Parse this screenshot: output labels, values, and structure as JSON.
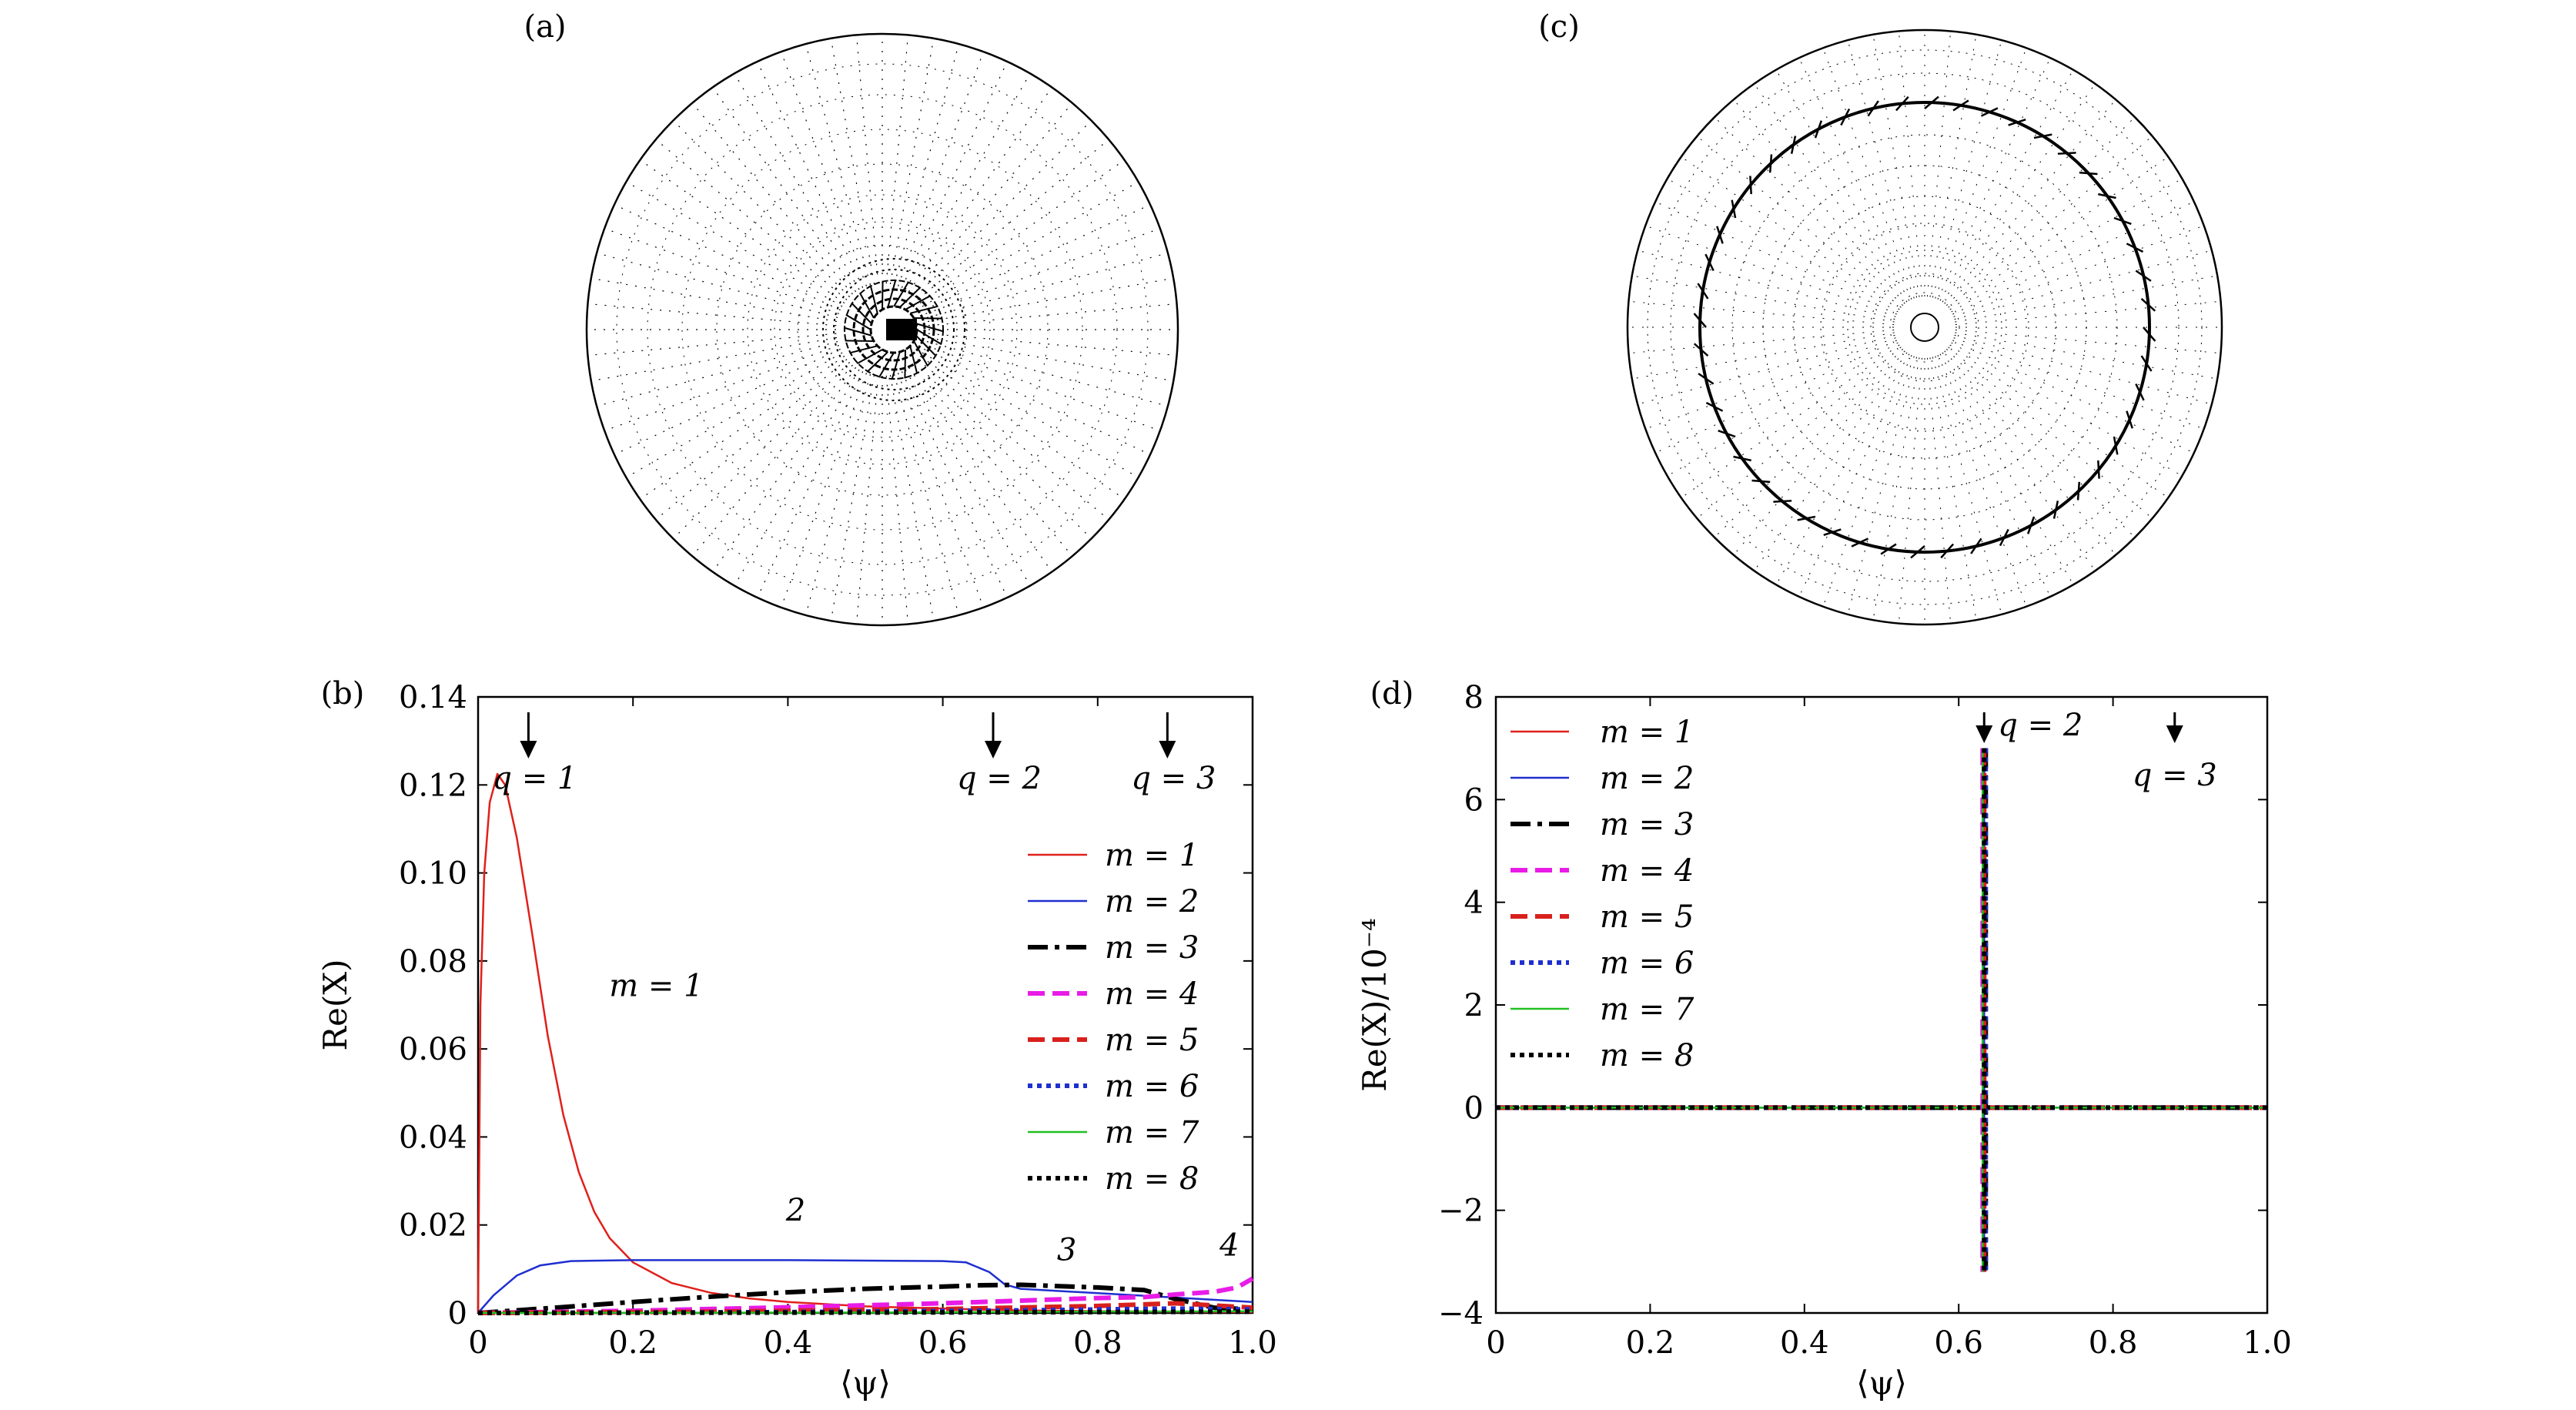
{
  "figure": {
    "panel_labels": {
      "a": "(a)",
      "b": "(b)",
      "c": "(c)",
      "d": "(d)"
    }
  },
  "chart_data": [
    {
      "panel": "b",
      "type": "line",
      "xlabel": "⟨ψ⟩",
      "ylabel": "Re(X)",
      "xlim": [
        0,
        1.0
      ],
      "ylim": [
        0,
        0.14
      ],
      "xticks": [
        "0",
        "0.2",
        "0.4",
        "0.6",
        "0.8",
        "1.0"
      ],
      "yticks": [
        "0",
        "0.02",
        "0.04",
        "0.06",
        "0.08",
        "0.10",
        "0.12",
        "0.14"
      ],
      "rational_surfaces": [
        {
          "label": "q = 1",
          "x": 0.065
        },
        {
          "label": "q = 2",
          "x": 0.665
        },
        {
          "label": "q = 3",
          "x": 0.89
        }
      ],
      "curve_annotations": [
        {
          "text": "m = 1",
          "x": 0.23,
          "y": 0.072
        },
        {
          "text": "2",
          "x": 0.41,
          "y": 0.021
        },
        {
          "text": "3",
          "x": 0.76,
          "y": 0.012
        },
        {
          "text": "4",
          "x": 0.97,
          "y": 0.013
        }
      ],
      "legend_position": "right",
      "series": [
        {
          "name": "m = 1",
          "color": "#e0201b",
          "style": "solid",
          "width": "thin",
          "points": [
            [
              0,
              0
            ],
            [
              0.003,
              0.07
            ],
            [
              0.008,
              0.1
            ],
            [
              0.015,
              0.116
            ],
            [
              0.025,
              0.1225
            ],
            [
              0.035,
              0.12
            ],
            [
              0.05,
              0.108
            ],
            [
              0.07,
              0.086
            ],
            [
              0.09,
              0.063
            ],
            [
              0.11,
              0.045
            ],
            [
              0.13,
              0.032
            ],
            [
              0.15,
              0.023
            ],
            [
              0.17,
              0.017
            ],
            [
              0.2,
              0.0115
            ],
            [
              0.25,
              0.0068
            ],
            [
              0.3,
              0.0046
            ],
            [
              0.35,
              0.0033
            ],
            [
              0.4,
              0.0025
            ],
            [
              0.5,
              0.0015
            ],
            [
              0.6,
              0.001
            ],
            [
              0.7,
              0.0006
            ],
            [
              0.8,
              0.0004
            ],
            [
              1.0,
              0.0002
            ]
          ]
        },
        {
          "name": "m = 2",
          "color": "#1f2fd0",
          "style": "solid",
          "width": "thin",
          "points": [
            [
              0,
              0
            ],
            [
              0.02,
              0.004
            ],
            [
              0.05,
              0.0085
            ],
            [
              0.08,
              0.0108
            ],
            [
              0.12,
              0.0118
            ],
            [
              0.2,
              0.012
            ],
            [
              0.4,
              0.012
            ],
            [
              0.6,
              0.0118
            ],
            [
              0.63,
              0.0115
            ],
            [
              0.66,
              0.0093
            ],
            [
              0.68,
              0.0065
            ],
            [
              0.7,
              0.0055
            ],
            [
              0.8,
              0.0045
            ],
            [
              0.9,
              0.0035
            ],
            [
              1.0,
              0.0025
            ]
          ]
        },
        {
          "name": "m = 3",
          "color": "#000000",
          "style": "dashdot",
          "width": "thick",
          "points": [
            [
              0,
              0
            ],
            [
              0.1,
              0.0012
            ],
            [
              0.2,
              0.0025
            ],
            [
              0.3,
              0.0037
            ],
            [
              0.4,
              0.0047
            ],
            [
              0.5,
              0.0055
            ],
            [
              0.6,
              0.006
            ],
            [
              0.65,
              0.0063
            ],
            [
              0.7,
              0.0064
            ],
            [
              0.8,
              0.0058
            ],
            [
              0.86,
              0.0052
            ],
            [
              0.9,
              0.0032
            ],
            [
              0.95,
              0.0012
            ],
            [
              1.0,
              0.0008
            ]
          ]
        },
        {
          "name": "m = 4",
          "color": "#e81ce6",
          "style": "dashed",
          "width": "thick",
          "points": [
            [
              0,
              0
            ],
            [
              0.2,
              0.0005
            ],
            [
              0.4,
              0.0013
            ],
            [
              0.6,
              0.0022
            ],
            [
              0.7,
              0.0028
            ],
            [
              0.8,
              0.0034
            ],
            [
              0.86,
              0.0036
            ],
            [
              0.9,
              0.0042
            ],
            [
              0.95,
              0.0048
            ],
            [
              0.98,
              0.0058
            ],
            [
              1.0,
              0.0078
            ]
          ]
        },
        {
          "name": "m = 5",
          "color": "#d8201c",
          "style": "dashed",
          "width": "thick",
          "points": [
            [
              0,
              0
            ],
            [
              0.3,
              0.0003
            ],
            [
              0.6,
              0.0009
            ],
            [
              0.8,
              0.0016
            ],
            [
              0.9,
              0.0022
            ],
            [
              1.0,
              0.0012
            ]
          ]
        },
        {
          "name": "m = 6",
          "color": "#1f2fd0",
          "style": "dotted",
          "width": "thick",
          "points": [
            [
              0,
              0
            ],
            [
              0.4,
              0.0002
            ],
            [
              0.7,
              0.0006
            ],
            [
              0.9,
              0.001
            ],
            [
              1.0,
              0.0008
            ]
          ]
        },
        {
          "name": "m = 7",
          "color": "#22c022",
          "style": "solid",
          "width": "thin",
          "points": [
            [
              0,
              0
            ],
            [
              0.5,
              0.0001
            ],
            [
              0.8,
              0.0003
            ],
            [
              1.0,
              0.0004
            ]
          ]
        },
        {
          "name": "m = 8",
          "color": "#000000",
          "style": "dotted",
          "width": "thick",
          "points": [
            [
              0,
              0
            ],
            [
              0.5,
              0.0001
            ],
            [
              0.8,
              0.0002
            ],
            [
              1.0,
              0.0003
            ]
          ]
        }
      ]
    },
    {
      "panel": "d",
      "type": "line",
      "xlabel": "⟨ψ⟩",
      "ylabel": "Re(X)/10⁻⁴",
      "xlim": [
        0,
        1.0
      ],
      "ylim": [
        -4,
        8
      ],
      "xticks": [
        "0",
        "0.2",
        "0.4",
        "0.6",
        "0.8",
        "1.0"
      ],
      "yticks": [
        "−4",
        "−2",
        "0",
        "2",
        "4",
        "6",
        "8"
      ],
      "rational_surfaces": [
        {
          "label": "q = 2",
          "x": 0.633
        },
        {
          "label": "q = 3",
          "x": 0.88
        }
      ],
      "spike": {
        "x": 0.633,
        "ymin": -3.2,
        "ymax": 7.0
      },
      "legend_position": "top-left",
      "series": [
        {
          "name": "m = 1",
          "color": "#e0201b",
          "style": "solid",
          "width": "thin"
        },
        {
          "name": "m = 2",
          "color": "#1f2fd0",
          "style": "solid",
          "width": "thin"
        },
        {
          "name": "m = 3",
          "color": "#000000",
          "style": "dashdot",
          "width": "thick"
        },
        {
          "name": "m = 4",
          "color": "#e81ce6",
          "style": "dashed",
          "width": "thick"
        },
        {
          "name": "m = 5",
          "color": "#d8201c",
          "style": "dashed",
          "width": "thick"
        },
        {
          "name": "m = 6",
          "color": "#1f2fd0",
          "style": "dotted",
          "width": "thick"
        },
        {
          "name": "m = 7",
          "color": "#22c022",
          "style": "solid",
          "width": "thin"
        },
        {
          "name": "m = 8",
          "color": "#000000",
          "style": "dotted",
          "width": "thick"
        }
      ]
    }
  ]
}
